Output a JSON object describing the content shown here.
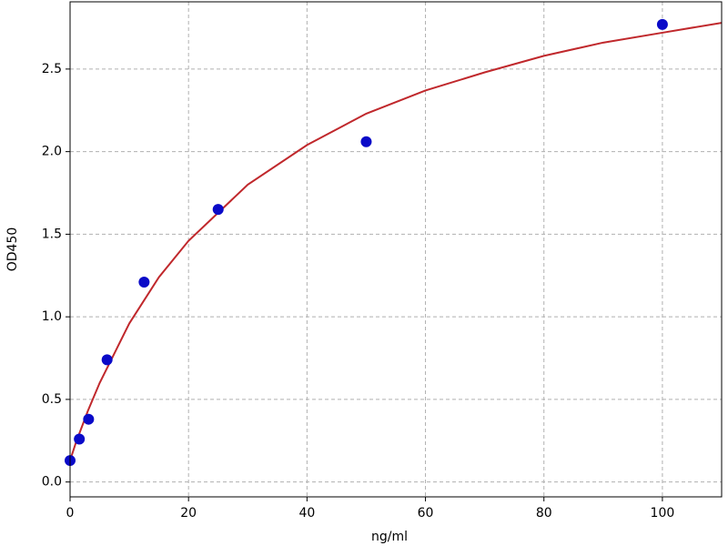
{
  "chart_data": {
    "type": "scatter",
    "x_label": "ng/ml",
    "y_label": "OD450",
    "x": [
      0,
      1.5625,
      3.125,
      6.25,
      12.5,
      25,
      50,
      100
    ],
    "values": [
      0.13,
      0.26,
      0.38,
      0.74,
      1.21,
      1.65,
      2.06,
      2.77
    ],
    "color": "#0a0ac8",
    "fit": {
      "type": "line",
      "color": "#c0282c",
      "x": [
        0,
        1,
        2,
        3,
        5,
        10,
        15,
        20,
        30,
        40,
        50,
        60,
        70,
        80,
        90,
        100,
        110
      ],
      "values": [
        0.13,
        0.24,
        0.335,
        0.43,
        0.6,
        0.96,
        1.24,
        1.46,
        1.8,
        2.04,
        2.23,
        2.37,
        2.48,
        2.58,
        2.66,
        2.72,
        2.78
      ]
    },
    "xlim": [
      0,
      110
    ],
    "ylim": [
      -0.09,
      2.907
    ],
    "xticks": [
      0,
      20,
      40,
      60,
      80,
      100
    ],
    "yticks": [
      {
        "value": 0,
        "label": "0.0"
      },
      0.5,
      {
        "value": 1,
        "label": "1.0"
      },
      1.5,
      {
        "value": 2,
        "label": "2.0"
      },
      2.5
    ],
    "grid": true
  }
}
